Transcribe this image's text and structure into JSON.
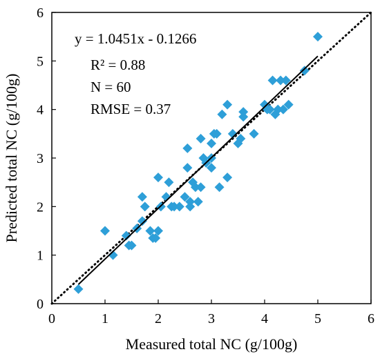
{
  "chart_data": {
    "type": "scatter",
    "xlabel": "Measured total NC (g/100g)",
    "ylabel": "Predicted total NC (g/100g)",
    "xlim": [
      0,
      6
    ],
    "ylim": [
      0,
      6
    ],
    "x_ticks": [
      "0",
      "1",
      "2",
      "3",
      "4",
      "5",
      "6"
    ],
    "y_ticks": [
      "0",
      "1",
      "2",
      "3",
      "4",
      "5",
      "6"
    ],
    "grid": false,
    "marker": "diamond",
    "color": "#2e9fd8",
    "annotations": [
      "y = 1.0451x - 0.1266",
      "R² = 0.88",
      "N = 60",
      "RMSE = 0.37"
    ],
    "regression_line": {
      "slope": 1.0451,
      "intercept": -0.1266,
      "x_range": [
        0.5,
        5.0
      ],
      "style": "solid"
    },
    "reference_line": {
      "label": "1:1",
      "x_range": [
        0,
        6
      ],
      "style": "dotted"
    },
    "points": [
      [
        0.5,
        0.3
      ],
      [
        1.0,
        1.5
      ],
      [
        1.15,
        1.0
      ],
      [
        1.4,
        1.4
      ],
      [
        1.45,
        1.2
      ],
      [
        1.5,
        1.2
      ],
      [
        1.6,
        1.55
      ],
      [
        1.7,
        1.7
      ],
      [
        1.7,
        2.2
      ],
      [
        1.75,
        2.0
      ],
      [
        1.85,
        1.5
      ],
      [
        1.9,
        1.35
      ],
      [
        1.95,
        1.35
      ],
      [
        2.0,
        1.5
      ],
      [
        2.0,
        2.6
      ],
      [
        2.05,
        2.0
      ],
      [
        2.15,
        2.2
      ],
      [
        2.2,
        2.5
      ],
      [
        2.25,
        2.0
      ],
      [
        2.3,
        2.0
      ],
      [
        2.4,
        2.0
      ],
      [
        2.5,
        2.2
      ],
      [
        2.55,
        2.8
      ],
      [
        2.55,
        3.2
      ],
      [
        2.6,
        2.0
      ],
      [
        2.6,
        2.1
      ],
      [
        2.65,
        2.5
      ],
      [
        2.7,
        2.4
      ],
      [
        2.75,
        2.1
      ],
      [
        2.8,
        2.4
      ],
      [
        2.8,
        3.4
      ],
      [
        2.85,
        3.0
      ],
      [
        2.9,
        2.9
      ],
      [
        3.0,
        2.8
      ],
      [
        3.0,
        3.0
      ],
      [
        3.0,
        3.3
      ],
      [
        3.05,
        3.5
      ],
      [
        3.1,
        3.5
      ],
      [
        3.15,
        2.4
      ],
      [
        3.2,
        3.9
      ],
      [
        3.3,
        2.6
      ],
      [
        3.3,
        4.1
      ],
      [
        3.4,
        3.5
      ],
      [
        3.5,
        3.3
      ],
      [
        3.55,
        3.4
      ],
      [
        3.6,
        3.85
      ],
      [
        3.6,
        3.95
      ],
      [
        3.8,
        3.5
      ],
      [
        4.0,
        4.1
      ],
      [
        4.05,
        4.0
      ],
      [
        4.1,
        4.0
      ],
      [
        4.15,
        4.6
      ],
      [
        4.2,
        3.9
      ],
      [
        4.25,
        4.0
      ],
      [
        4.3,
        4.6
      ],
      [
        4.35,
        4.0
      ],
      [
        4.4,
        4.6
      ],
      [
        4.45,
        4.1
      ],
      [
        4.75,
        4.8
      ],
      [
        5.0,
        5.5
      ]
    ]
  }
}
